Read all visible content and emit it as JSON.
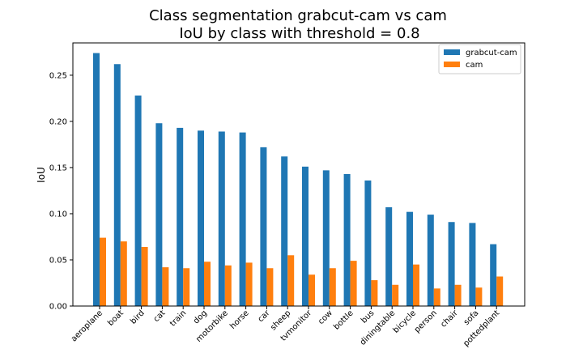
{
  "chart_data": {
    "type": "bar",
    "title": "Class segmentation grabcut-cam vs cam",
    "subtitle": "IoU by class with threshold = 0.8",
    "xlabel": "",
    "ylabel": "IoU",
    "ylim": [
      0,
      0.285
    ],
    "yticks": [
      0.0,
      0.05,
      0.1,
      0.15,
      0.2,
      0.25
    ],
    "ytick_labels": [
      "0.00",
      "0.05",
      "0.10",
      "0.15",
      "0.20",
      "0.25"
    ],
    "grid": false,
    "legend_position": "top-right",
    "categories": [
      "aeroplane",
      "boat",
      "bird",
      "cat",
      "train",
      "dog",
      "motorbike",
      "horse",
      "car",
      "sheep",
      "tvmonitor",
      "cow",
      "bottle",
      "bus",
      "diningtable",
      "bicycle",
      "person",
      "chair",
      "sofa",
      "pottedplant"
    ],
    "series": [
      {
        "name": "grabcut-cam",
        "color": "#1f77b4",
        "values": [
          0.274,
          0.262,
          0.228,
          0.198,
          0.193,
          0.19,
          0.189,
          0.188,
          0.172,
          0.162,
          0.151,
          0.147,
          0.143,
          0.136,
          0.107,
          0.102,
          0.099,
          0.091,
          0.09,
          0.067
        ]
      },
      {
        "name": "cam",
        "color": "#ff7f0e",
        "values": [
          0.074,
          0.07,
          0.064,
          0.042,
          0.041,
          0.048,
          0.044,
          0.047,
          0.041,
          0.055,
          0.034,
          0.041,
          0.049,
          0.028,
          0.023,
          0.045,
          0.019,
          0.023,
          0.02,
          0.032
        ]
      }
    ]
  }
}
